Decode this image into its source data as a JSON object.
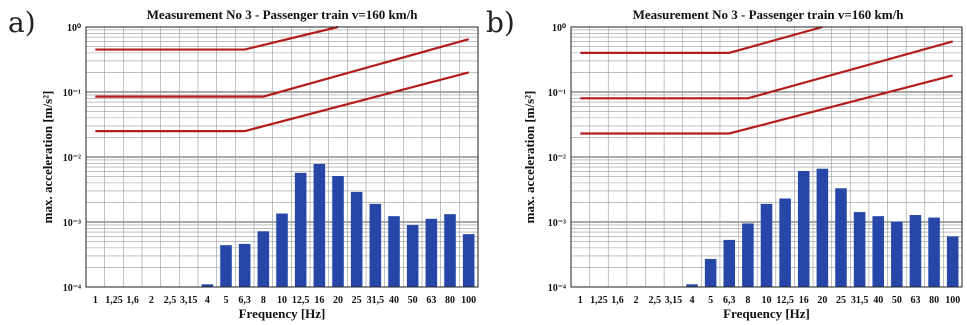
{
  "chart_data": [
    {
      "panel_label": "a)",
      "type": "bar",
      "title": "Measurement No 3 - Passenger train v=160 km/h",
      "xlabel": "Frequency [Hz]",
      "ylabel": "max. acceleration [m/s²]",
      "yscale": "log",
      "ylim": [
        0.0001,
        1
      ],
      "yticks": [
        "10⁰",
        "10⁻¹",
        "10⁻²",
        "10⁻³",
        "10⁻⁴"
      ],
      "categories": [
        "1",
        "1,25",
        "1,6",
        "2",
        "2,5",
        "3,15",
        "4",
        "5",
        "6,3",
        "8",
        "10",
        "12,5",
        "16",
        "20",
        "25",
        "31,5",
        "40",
        "50",
        "63",
        "80",
        "100"
      ],
      "values": [
        null,
        null,
        null,
        null,
        null,
        null,
        0.00011,
        0.00044,
        0.00046,
        0.00072,
        0.00135,
        0.0057,
        0.0078,
        0.0051,
        0.0029,
        0.0019,
        0.00123,
        0.0009,
        0.00112,
        0.00132,
        0.00065
      ],
      "bar_color": "#2747a8",
      "limit_curves": [
        {
          "x": [
            "1",
            "6,3",
            "20"
          ],
          "y": [
            0.45,
            0.45,
            1.0
          ]
        },
        {
          "x": [
            "1",
            "8",
            "100"
          ],
          "y": [
            0.085,
            0.085,
            0.65
          ]
        },
        {
          "x": [
            "1",
            "6,3",
            "100"
          ],
          "y": [
            0.025,
            0.025,
            0.2
          ]
        }
      ],
      "limit_color": "#b51c1c",
      "grid": true
    },
    {
      "panel_label": "b)",
      "type": "bar",
      "title": "Measurement No 3 - Passenger train v=160 km/h",
      "xlabel": "Frequency [Hz]",
      "ylabel": "max. acceleration [m/s²]",
      "yscale": "log",
      "ylim": [
        0.0001,
        1
      ],
      "yticks": [
        "10⁰",
        "10⁻¹",
        "10⁻²",
        "10⁻³",
        "10⁻⁴"
      ],
      "categories": [
        "1",
        "1,25",
        "1,6",
        "2",
        "2,5",
        "3,15",
        "4",
        "5",
        "6,3",
        "8",
        "10",
        "12,5",
        "16",
        "20",
        "25",
        "31,5",
        "40",
        "50",
        "63",
        "80",
        "100"
      ],
      "values": [
        null,
        null,
        null,
        null,
        null,
        null,
        0.00011,
        0.00027,
        0.00053,
        0.00095,
        0.0019,
        0.0023,
        0.0061,
        0.0066,
        0.0033,
        0.00142,
        0.00123,
        0.00102,
        0.00128,
        0.00117,
        0.0006
      ],
      "bar_color": "#2747a8",
      "limit_curves": [
        {
          "x": [
            "1",
            "6,3",
            "20"
          ],
          "y": [
            0.4,
            0.4,
            1.0
          ]
        },
        {
          "x": [
            "1",
            "8",
            "100"
          ],
          "y": [
            0.08,
            0.08,
            0.6
          ]
        },
        {
          "x": [
            "1",
            "6,3",
            "100"
          ],
          "y": [
            0.023,
            0.023,
            0.18
          ]
        }
      ],
      "limit_color": "#b51c1c",
      "grid": true
    }
  ]
}
